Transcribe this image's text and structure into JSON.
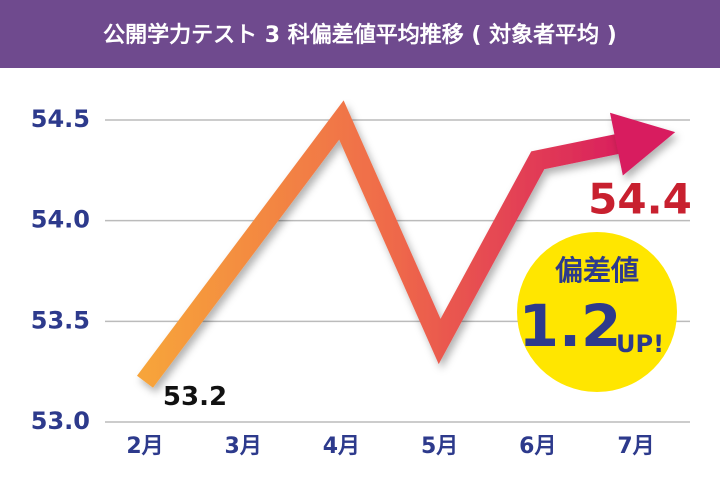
{
  "chart_data": {
    "type": "line",
    "title": "公開学力テスト 3 科偏差値平均推移 ( 対象者平均 )",
    "categories": [
      "2月",
      "3月",
      "4月",
      "5月",
      "6月",
      "7月"
    ],
    "series": [
      {
        "name": "偏差値",
        "color": "#e8305a",
        "values": [
          53.2,
          53.85,
          54.5,
          53.4,
          54.3,
          54.4
        ],
        "value_labels": [
          "53.2",
          null,
          null,
          null,
          null,
          "54.4"
        ]
      }
    ],
    "ylim": [
      53.0,
      54.5
    ],
    "yticks": [
      {
        "value": 53.0,
        "label": "53.0"
      },
      53.5,
      {
        "value": 54.0,
        "label": "54.0"
      },
      54.5
    ],
    "grid": true,
    "badge": {
      "label": "偏差値",
      "value": "1.2",
      "suffix": "UP!"
    }
  }
}
